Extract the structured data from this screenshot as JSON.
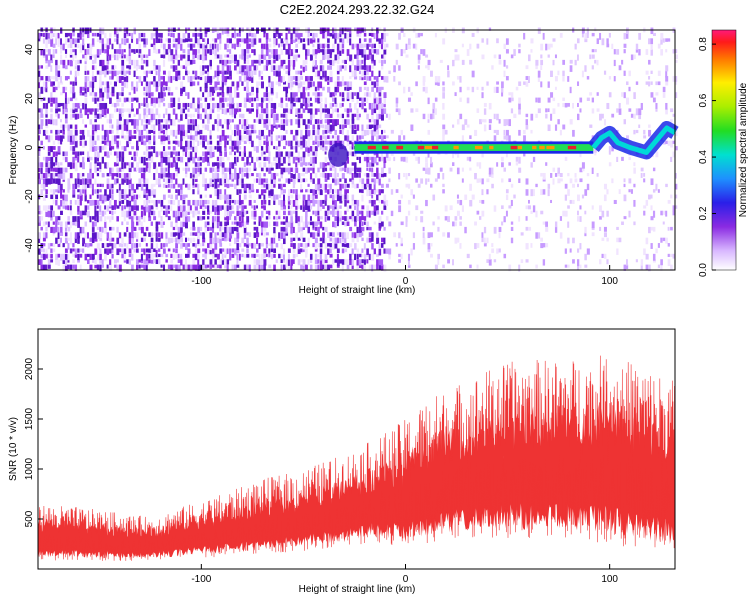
{
  "title": "C2E2.2024.293.22.32.G24",
  "chart_data": [
    {
      "type": "heatmap",
      "xlabel": "Height of straight line (km)",
      "ylabel": "Frequency (Hz)",
      "xlim": [
        -180,
        132
      ],
      "ylim": [
        -50,
        48
      ],
      "x_ticks": [
        "-100",
        "0",
        "100"
      ],
      "x_tick_values": [
        -100,
        0,
        100
      ],
      "y_ticks": [
        "-40",
        "-20",
        "0",
        "20",
        "40"
      ],
      "y_tick_values": [
        -40,
        -20,
        0,
        20,
        40
      ],
      "colorbar": {
        "label": "Normalized spectral amplitude",
        "range": [
          0,
          0.85
        ],
        "ticks": [
          "0.0",
          "0.2",
          "0.4",
          "0.6",
          "0.8"
        ],
        "tick_values": [
          0,
          0.2,
          0.4,
          0.6,
          0.8
        ]
      },
      "carrier_trace": {
        "frequency_hz": 0,
        "x_start": -25,
        "x_end": 92,
        "tail": [
          [
            92,
            0
          ],
          [
            96,
            4
          ],
          [
            100,
            6
          ],
          [
            104,
            2
          ],
          [
            110,
            0
          ],
          [
            118,
            -2
          ],
          [
            124,
            4
          ],
          [
            128,
            8
          ],
          [
            132,
            6
          ]
        ]
      },
      "noise_region_x": [
        -180,
        -10
      ],
      "colors": {
        "noise": "#7a1fe0",
        "trace_core": "#e8202a",
        "trace_edge": "#1a28e8"
      }
    },
    {
      "type": "line",
      "xlabel": "Height of straight line (km)",
      "ylabel": "SNR (10 * v/v)",
      "xlim": [
        -180,
        132
      ],
      "ylim": [
        0,
        2400
      ],
      "x_ticks": [
        "-100",
        "0",
        "100"
      ],
      "x_tick_values": [
        -100,
        0,
        100
      ],
      "y_ticks": [
        "500",
        "1000",
        "1500",
        "2000"
      ],
      "y_tick_values": [
        500,
        1000,
        1500,
        2000
      ],
      "series_color": "#ee3333",
      "envelope": [
        {
          "x": -180,
          "low": 80,
          "high": 650
        },
        {
          "x": -160,
          "low": 80,
          "high": 620
        },
        {
          "x": -140,
          "low": 80,
          "high": 560
        },
        {
          "x": -125,
          "low": 80,
          "high": 520
        },
        {
          "x": -110,
          "low": 100,
          "high": 620
        },
        {
          "x": -90,
          "low": 120,
          "high": 750
        },
        {
          "x": -70,
          "low": 150,
          "high": 900
        },
        {
          "x": -50,
          "low": 180,
          "high": 1000
        },
        {
          "x": -30,
          "low": 220,
          "high": 1150
        },
        {
          "x": -15,
          "low": 260,
          "high": 1300
        },
        {
          "x": 0,
          "low": 200,
          "high": 1500
        },
        {
          "x": 10,
          "low": 250,
          "high": 1700
        },
        {
          "x": 25,
          "low": 300,
          "high": 1850
        },
        {
          "x": 45,
          "low": 300,
          "high": 2050
        },
        {
          "x": 60,
          "low": 300,
          "high": 2100
        },
        {
          "x": 80,
          "low": 300,
          "high": 2100
        },
        {
          "x": 100,
          "low": 250,
          "high": 2150
        },
        {
          "x": 115,
          "low": 200,
          "high": 2050
        },
        {
          "x": 132,
          "low": 150,
          "high": 1900
        }
      ]
    }
  ]
}
